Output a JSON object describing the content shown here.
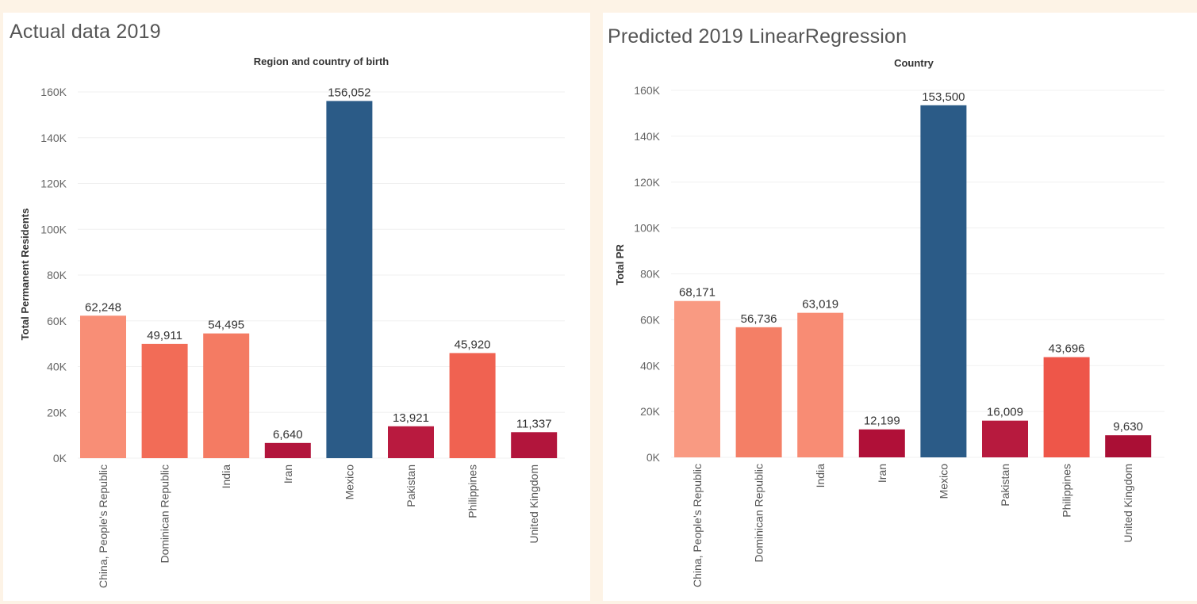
{
  "charts": [
    {
      "panel_title": "Actual data 2019"
    },
    {
      "panel_title": "Predicted 2019 LinearRegression"
    }
  ],
  "chart_data": [
    {
      "type": "bar",
      "title": "Actual data 2019",
      "header_label": "Region and country of birth",
      "ylabel": "Total Permanent Residents",
      "xlabel": "",
      "categories": [
        "China, People's Republic",
        "Dominican Republic",
        "India",
        "Iran",
        "Mexico",
        "Pakistan",
        "Philippines",
        "United Kingdom"
      ],
      "values": [
        62248,
        49911,
        54495,
        6640,
        156052,
        13921,
        45920,
        11337
      ],
      "value_labels": [
        "62,248",
        "49,911",
        "54,495",
        "6,640",
        "156,052",
        "13,921",
        "45,920",
        "11,337"
      ],
      "bar_colors": [
        "#f88e76",
        "#f26c57",
        "#f47b63",
        "#b2153c",
        "#2b5b87",
        "#b91a3f",
        "#f06251",
        "#b2153c"
      ],
      "yticks": [
        0,
        20000,
        40000,
        60000,
        80000,
        100000,
        120000,
        140000,
        160000
      ],
      "ytick_labels": [
        "0K",
        "20K",
        "40K",
        "60K",
        "80K",
        "100K",
        "120K",
        "140K",
        "160K"
      ],
      "ylim": [
        0,
        170000
      ],
      "grid": true,
      "legend": "none"
    },
    {
      "type": "bar",
      "title": "Predicted 2019 LinearRegression",
      "header_label": "Country",
      "ylabel": "Total PR",
      "xlabel": "",
      "categories": [
        "China, People's Republic",
        "Dominican Republic",
        "India",
        "Iran",
        "Mexico",
        "Pakistan",
        "Philippines",
        "United Kingdom"
      ],
      "values": [
        68171,
        56736,
        63019,
        12199,
        153500,
        16009,
        43696,
        9630
      ],
      "value_labels": [
        "68,171",
        "56,736",
        "63,019",
        "12,199",
        "153,500",
        "16,009",
        "43,696",
        "9,630"
      ],
      "bar_colors": [
        "#f99a82",
        "#f47f66",
        "#f88c74",
        "#b01038",
        "#2b5b87",
        "#b71a3e",
        "#ee5649",
        "#aa0f35"
      ],
      "yticks": [
        0,
        20000,
        40000,
        60000,
        80000,
        100000,
        120000,
        140000,
        160000
      ],
      "ytick_labels": [
        "0K",
        "20K",
        "40K",
        "60K",
        "80K",
        "100K",
        "120K",
        "140K",
        "160K"
      ],
      "ylim": [
        0,
        170000
      ],
      "grid": true,
      "legend": "none"
    }
  ]
}
